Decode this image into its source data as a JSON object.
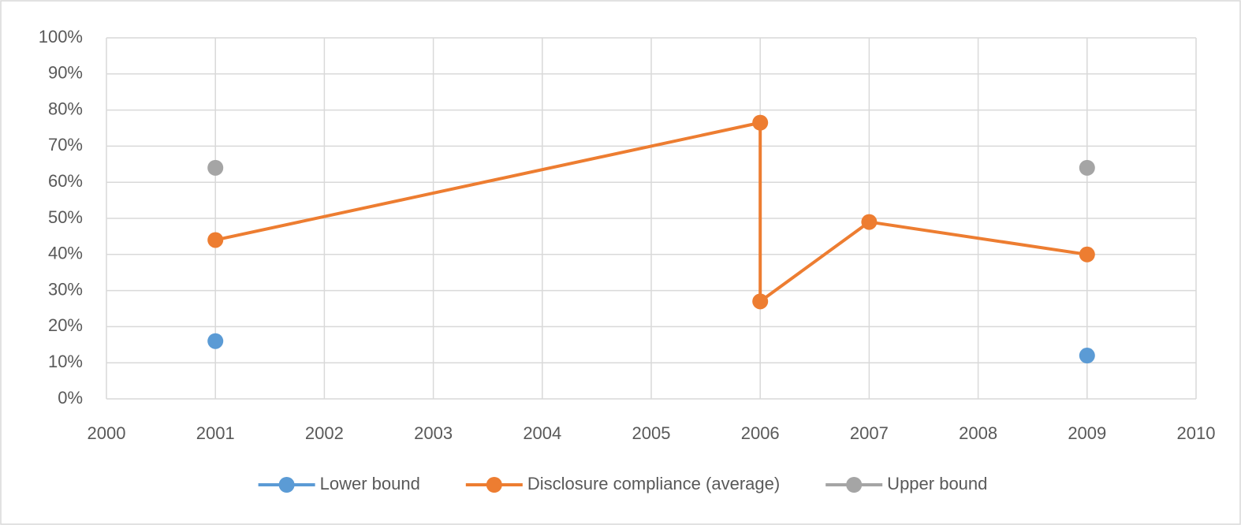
{
  "chart_data": {
    "type": "scatter",
    "series": [
      {
        "name": "Lower bound",
        "color": "#5b9bd5",
        "line": false,
        "x": [
          2001,
          2009
        ],
        "values": [
          16,
          12
        ]
      },
      {
        "name": "Disclosure compliance (average)",
        "color": "#ed7d31",
        "line": true,
        "x": [
          2001,
          2006,
          2006,
          2007,
          2009
        ],
        "values": [
          44,
          76.5,
          27,
          49,
          40
        ]
      },
      {
        "name": "Upper bound",
        "color": "#a5a5a5",
        "line": false,
        "x": [
          2001,
          2009
        ],
        "values": [
          64,
          64
        ]
      }
    ],
    "xlim": [
      2000,
      2010
    ],
    "xticks": [
      2000,
      2001,
      2002,
      2003,
      2004,
      2005,
      2006,
      2007,
      2008,
      2009,
      2010
    ],
    "ylim": [
      0,
      100
    ],
    "yticks": [
      {
        "value": 0,
        "label": "0%"
      },
      {
        "value": 10,
        "label": "10%"
      },
      {
        "value": 20,
        "label": "20%"
      },
      {
        "value": 30,
        "label": "30%"
      },
      {
        "value": 40,
        "label": "40%"
      },
      {
        "value": 50,
        "label": "50%"
      },
      {
        "value": 60,
        "label": "60%"
      },
      {
        "value": 70,
        "label": "70%"
      },
      {
        "value": 80,
        "label": "80%"
      },
      {
        "value": 90,
        "label": "90%"
      },
      {
        "value": 100,
        "label": "100%"
      }
    ],
    "grid": true,
    "legend": "bottom"
  }
}
